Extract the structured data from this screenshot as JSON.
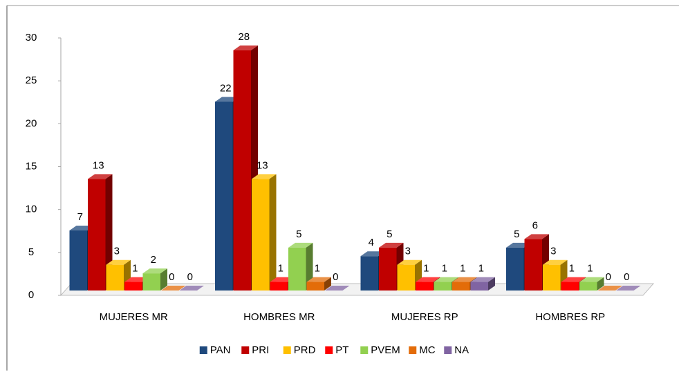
{
  "chart_data": {
    "type": "bar3d",
    "categories": [
      "MUJERES MR",
      "HOMBRES MR",
      "MUJERES RP",
      "HOMBRES RP"
    ],
    "series": [
      {
        "name": "PAN",
        "color": "#1f497d",
        "values": [
          7,
          22,
          4,
          5
        ]
      },
      {
        "name": "PRI",
        "color": "#c00000",
        "values": [
          13,
          28,
          5,
          6
        ]
      },
      {
        "name": "PRD",
        "color": "#ffc000",
        "values": [
          3,
          13,
          3,
          3
        ]
      },
      {
        "name": "PT",
        "color": "#ff0000",
        "values": [
          1,
          1,
          1,
          1
        ]
      },
      {
        "name": "PVEM",
        "color": "#92d050",
        "values": [
          2,
          5,
          1,
          1
        ]
      },
      {
        "name": "MC",
        "color": "#e36c09",
        "values": [
          0,
          1,
          1,
          0
        ]
      },
      {
        "name": "NA",
        "color": "#8064a2",
        "values": [
          0,
          0,
          1,
          0
        ]
      }
    ],
    "ylim": [
      0,
      30
    ],
    "yticks": [
      0,
      5,
      10,
      15,
      20,
      25,
      30
    ],
    "legend": "bottom"
  }
}
